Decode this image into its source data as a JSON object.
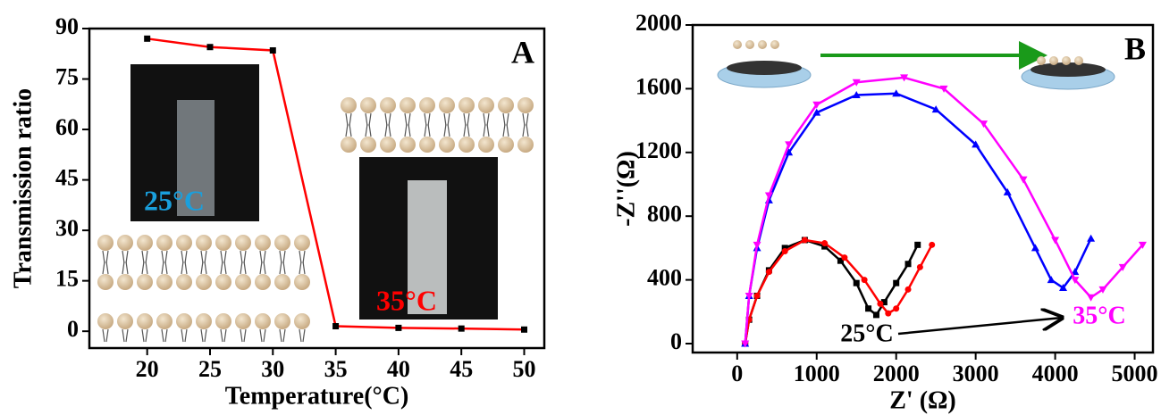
{
  "chart_data": [
    {
      "type": "line",
      "y_label": "Transmission ratio",
      "x_label": "Temperature(°C)",
      "x": [
        20,
        25,
        30,
        35,
        40,
        45,
        50
      ],
      "values": [
        87,
        84.5,
        83.5,
        1.5,
        1,
        0.8,
        0.5
      ],
      "color": "#ff0000",
      "marker_color": "#000000",
      "marker": "square",
      "xlim": [
        15.4,
        51.6
      ],
      "ylim": [
        -5,
        90
      ],
      "xticks": [
        20,
        25,
        30,
        35,
        40,
        45,
        50
      ],
      "yticks": [
        0,
        15,
        30,
        45,
        60,
        75,
        90
      ],
      "annotations": [
        {
          "text": "A",
          "color": "#000000"
        },
        {
          "text": "25°C",
          "color": "#1a9fdc"
        },
        {
          "text": "35°C",
          "color": "#ff0000"
        }
      ]
    },
    {
      "type": "line",
      "y_label": "-Z''(Ω)",
      "x_label": "Z' (Ω)",
      "xlim": [
        -560,
        5230
      ],
      "ylim": [
        -56,
        2000
      ],
      "xticks": [
        0,
        1000,
        2000,
        3000,
        4000,
        5000
      ],
      "yticks": [
        0,
        400,
        800,
        1200,
        1600,
        2000
      ],
      "series": [
        {
          "color": "#000000",
          "marker": "square",
          "x": [
            100,
            150,
            250,
            400,
            600,
            850,
            1100,
            1300,
            1500,
            1650,
            1750,
            1850,
            2000,
            2150,
            2270
          ],
          "values": [
            0,
            150,
            300,
            460,
            600,
            650,
            610,
            520,
            380,
            220,
            180,
            260,
            380,
            500,
            620
          ]
        },
        {
          "color": "#ff0000",
          "marker": "circle",
          "x": [
            100,
            150,
            250,
            400,
            600,
            850,
            1100,
            1350,
            1600,
            1800,
            1900,
            2000,
            2150,
            2300,
            2450
          ],
          "values": [
            0,
            150,
            300,
            450,
            580,
            650,
            630,
            540,
            400,
            250,
            190,
            220,
            340,
            480,
            620
          ]
        },
        {
          "color": "#0000ff",
          "marker": "triangle",
          "x": [
            100,
            150,
            250,
            400,
            650,
            1000,
            1500,
            2000,
            2500,
            3000,
            3400,
            3750,
            3950,
            4100,
            4250,
            4450
          ],
          "values": [
            0,
            300,
            600,
            900,
            1200,
            1450,
            1560,
            1570,
            1470,
            1250,
            950,
            600,
            400,
            350,
            450,
            660
          ]
        },
        {
          "color": "#ff00ff",
          "marker": "tri-down",
          "x": [
            100,
            150,
            250,
            400,
            650,
            1000,
            1500,
            2100,
            2600,
            3100,
            3600,
            4000,
            4250,
            4450,
            4600,
            4850,
            5100
          ],
          "values": [
            0,
            300,
            620,
            930,
            1250,
            1500,
            1640,
            1670,
            1600,
            1380,
            1030,
            650,
            400,
            290,
            340,
            480,
            620
          ]
        }
      ],
      "annotations": [
        {
          "text": "B",
          "color": "#000000"
        },
        {
          "text": "25°C",
          "color": "#000000"
        },
        {
          "text": "35°C",
          "color": "#ff00ff"
        }
      ]
    }
  ]
}
